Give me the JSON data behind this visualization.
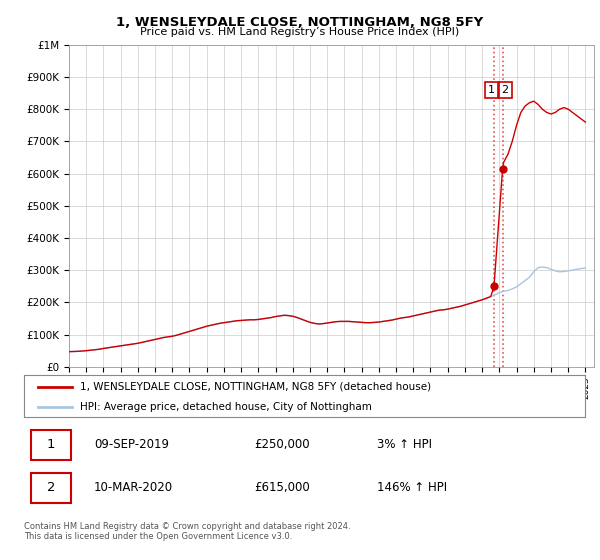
{
  "title": "1, WENSLEYDALE CLOSE, NOTTINGHAM, NG8 5FY",
  "subtitle": "Price paid vs. HM Land Registry’s House Price Index (HPI)",
  "ylabel_ticks": [
    "£0",
    "£100K",
    "£200K",
    "£300K",
    "£400K",
    "£500K",
    "£600K",
    "£700K",
    "£800K",
    "£900K",
    "£1M"
  ],
  "ytick_vals": [
    0,
    100000,
    200000,
    300000,
    400000,
    500000,
    600000,
    700000,
    800000,
    900000,
    1000000
  ],
  "ylim": [
    0,
    1000000
  ],
  "xlim_start": 1995.0,
  "xlim_end": 2025.5,
  "hpi_color": "#aac4e0",
  "property_color": "#cc0000",
  "dashed_color": "#dd4444",
  "transaction1_x": 2019.69,
  "transaction1_y": 250000,
  "transaction2_x": 2020.19,
  "transaction2_y": 615000,
  "legend_property": "1, WENSLEYDALE CLOSE, NOTTINGHAM, NG8 5FY (detached house)",
  "legend_hpi": "HPI: Average price, detached house, City of Nottingham",
  "table_row1": [
    "1",
    "09-SEP-2019",
    "£250,000",
    "3% ↑ HPI"
  ],
  "table_row2": [
    "2",
    "10-MAR-2020",
    "£615,000",
    "146% ↑ HPI"
  ],
  "footnote": "Contains HM Land Registry data © Crown copyright and database right 2024.\nThis data is licensed under the Open Government Licence v3.0.",
  "background_color": "#ffffff",
  "grid_color": "#cccccc",
  "hpi_x": [
    1995.0,
    1995.25,
    1995.5,
    1995.75,
    1996.0,
    1996.25,
    1996.5,
    1996.75,
    1997.0,
    1997.25,
    1997.5,
    1997.75,
    1998.0,
    1998.25,
    1998.5,
    1998.75,
    1999.0,
    1999.25,
    1999.5,
    1999.75,
    2000.0,
    2000.25,
    2000.5,
    2000.75,
    2001.0,
    2001.25,
    2001.5,
    2001.75,
    2002.0,
    2002.25,
    2002.5,
    2002.75,
    2003.0,
    2003.25,
    2003.5,
    2003.75,
    2004.0,
    2004.25,
    2004.5,
    2004.75,
    2005.0,
    2005.25,
    2005.5,
    2005.75,
    2006.0,
    2006.25,
    2006.5,
    2006.75,
    2007.0,
    2007.25,
    2007.5,
    2007.75,
    2008.0,
    2008.25,
    2008.5,
    2008.75,
    2009.0,
    2009.25,
    2009.5,
    2009.75,
    2010.0,
    2010.25,
    2010.5,
    2010.75,
    2011.0,
    2011.25,
    2011.5,
    2011.75,
    2012.0,
    2012.25,
    2012.5,
    2012.75,
    2013.0,
    2013.25,
    2013.5,
    2013.75,
    2014.0,
    2014.25,
    2014.5,
    2014.75,
    2015.0,
    2015.25,
    2015.5,
    2015.75,
    2016.0,
    2016.25,
    2016.5,
    2016.75,
    2017.0,
    2017.25,
    2017.5,
    2017.75,
    2018.0,
    2018.25,
    2018.5,
    2018.75,
    2019.0,
    2019.25,
    2019.5,
    2019.75,
    2020.0,
    2020.25,
    2020.5,
    2020.75,
    2021.0,
    2021.25,
    2021.5,
    2021.75,
    2022.0,
    2022.25,
    2022.5,
    2022.75,
    2023.0,
    2023.25,
    2023.5,
    2023.75,
    2024.0,
    2024.25,
    2024.5,
    2024.75,
    2025.0
  ],
  "hpi_y": [
    47000,
    47500,
    48000,
    49000,
    50000,
    51500,
    53000,
    54500,
    57000,
    59000,
    61000,
    63000,
    65000,
    67000,
    69000,
    71000,
    73000,
    76000,
    79000,
    82000,
    85000,
    88000,
    91000,
    93000,
    95000,
    98000,
    102000,
    106000,
    110000,
    114000,
    118000,
    122000,
    126000,
    129000,
    132000,
    135000,
    137000,
    139000,
    141000,
    143000,
    144000,
    145000,
    146000,
    146000,
    147000,
    149000,
    151000,
    153000,
    156000,
    158000,
    160000,
    159000,
    157000,
    153000,
    148000,
    143000,
    138000,
    135000,
    133000,
    134000,
    136000,
    138000,
    140000,
    141000,
    141000,
    141000,
    140000,
    139000,
    138000,
    137000,
    137000,
    138000,
    139000,
    141000,
    143000,
    145000,
    148000,
    151000,
    153000,
    155000,
    158000,
    161000,
    164000,
    167000,
    170000,
    173000,
    176000,
    177000,
    179000,
    182000,
    185000,
    188000,
    192000,
    196000,
    200000,
    204000,
    208000,
    213000,
    218000,
    224000,
    230000,
    235000,
    237000,
    242000,
    248000,
    258000,
    268000,
    278000,
    295000,
    308000,
    310000,
    308000,
    303000,
    298000,
    295000,
    296000,
    298000,
    300000,
    303000,
    305000,
    307000
  ],
  "prop_x": [
    1995.0,
    1995.25,
    1995.5,
    1995.75,
    1996.0,
    1996.25,
    1996.5,
    1996.75,
    1997.0,
    1997.25,
    1997.5,
    1997.75,
    1998.0,
    1998.25,
    1998.5,
    1998.75,
    1999.0,
    1999.25,
    1999.5,
    1999.75,
    2000.0,
    2000.25,
    2000.5,
    2000.75,
    2001.0,
    2001.25,
    2001.5,
    2001.75,
    2002.0,
    2002.25,
    2002.5,
    2002.75,
    2003.0,
    2003.25,
    2003.5,
    2003.75,
    2004.0,
    2004.25,
    2004.5,
    2004.75,
    2005.0,
    2005.25,
    2005.5,
    2005.75,
    2006.0,
    2006.25,
    2006.5,
    2006.75,
    2007.0,
    2007.25,
    2007.5,
    2007.75,
    2008.0,
    2008.25,
    2008.5,
    2008.75,
    2009.0,
    2009.25,
    2009.5,
    2009.75,
    2010.0,
    2010.25,
    2010.5,
    2010.75,
    2011.0,
    2011.25,
    2011.5,
    2011.75,
    2012.0,
    2012.25,
    2012.5,
    2012.75,
    2013.0,
    2013.25,
    2013.5,
    2013.75,
    2014.0,
    2014.25,
    2014.5,
    2014.75,
    2015.0,
    2015.25,
    2015.5,
    2015.75,
    2016.0,
    2016.25,
    2016.5,
    2016.75,
    2017.0,
    2017.25,
    2017.5,
    2017.75,
    2018.0,
    2018.25,
    2018.5,
    2018.75,
    2019.0,
    2019.25,
    2019.5,
    2019.69,
    2020.19,
    2020.25,
    2020.5,
    2020.75,
    2021.0,
    2021.25,
    2021.5,
    2021.75,
    2022.0,
    2022.25,
    2022.5,
    2022.75,
    2023.0,
    2023.25,
    2023.5,
    2023.75,
    2024.0,
    2024.25,
    2024.5,
    2024.75,
    2025.0
  ],
  "prop_y": [
    47000,
    47500,
    48000,
    49000,
    50000,
    51500,
    53000,
    54500,
    57000,
    59000,
    61000,
    63000,
    65000,
    67000,
    69000,
    71000,
    73000,
    76000,
    79000,
    82000,
    85000,
    88000,
    91000,
    93000,
    95000,
    98000,
    102000,
    106000,
    110000,
    114000,
    118000,
    122000,
    126000,
    129000,
    132000,
    135000,
    137000,
    139000,
    141000,
    143000,
    144000,
    145000,
    146000,
    146000,
    147000,
    149000,
    151000,
    153000,
    156000,
    158000,
    160000,
    159000,
    157000,
    153000,
    148000,
    143000,
    138000,
    135000,
    133000,
    134000,
    136000,
    138000,
    140000,
    141000,
    141000,
    141000,
    140000,
    139000,
    138000,
    137000,
    137000,
    138000,
    139000,
    141000,
    143000,
    145000,
    148000,
    151000,
    153000,
    155000,
    158000,
    161000,
    164000,
    167000,
    170000,
    173000,
    176000,
    177000,
    179000,
    182000,
    185000,
    188000,
    192000,
    196000,
    200000,
    204000,
    208000,
    213000,
    218000,
    250000,
    615000,
    635000,
    660000,
    700000,
    750000,
    790000,
    810000,
    820000,
    825000,
    815000,
    800000,
    790000,
    785000,
    790000,
    800000,
    805000,
    800000,
    790000,
    780000,
    770000,
    760000
  ]
}
